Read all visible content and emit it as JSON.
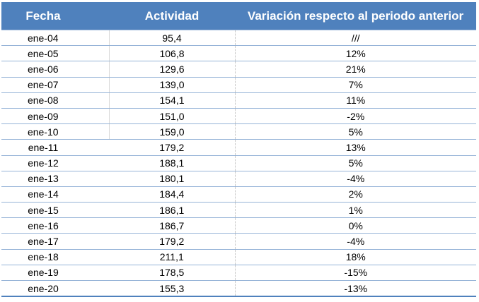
{
  "table": {
    "headers": {
      "fecha": "Fecha",
      "actividad": "Actividad",
      "variacion": "Variación respecto al periodo anterior"
    },
    "rows": [
      {
        "fecha": "ene-04",
        "actividad": "95,4",
        "variacion": "///"
      },
      {
        "fecha": "ene-05",
        "actividad": "106,8",
        "variacion": "12%"
      },
      {
        "fecha": "ene-06",
        "actividad": "129,6",
        "variacion": "21%"
      },
      {
        "fecha": "ene-07",
        "actividad": "139,0",
        "variacion": "7%"
      },
      {
        "fecha": "ene-08",
        "actividad": "154,1",
        "variacion": "11%"
      },
      {
        "fecha": "ene-09",
        "actividad": "151,0",
        "variacion": "-2%"
      },
      {
        "fecha": "ene-10",
        "actividad": "159,0",
        "variacion": "5%"
      },
      {
        "fecha": "ene-11",
        "actividad": "179,2",
        "variacion": "13%"
      },
      {
        "fecha": "ene-12",
        "actividad": "188,1",
        "variacion": "5%"
      },
      {
        "fecha": "ene-13",
        "actividad": "180,1",
        "variacion": "-4%"
      },
      {
        "fecha": "ene-14",
        "actividad": "184,4",
        "variacion": "2%"
      },
      {
        "fecha": "ene-15",
        "actividad": "186,1",
        "variacion": "1%"
      },
      {
        "fecha": "ene-16",
        "actividad": "186,7",
        "variacion": "0%"
      },
      {
        "fecha": "ene-17",
        "actividad": "179,2",
        "variacion": "-4%"
      },
      {
        "fecha": "ene-18",
        "actividad": "211,1",
        "variacion": "18%"
      },
      {
        "fecha": "ene-19",
        "actividad": "178,5",
        "variacion": "-15%"
      },
      {
        "fecha": "ene-20",
        "actividad": "155,3",
        "variacion": "-13%"
      }
    ]
  },
  "colors": {
    "header_background": "#4f81bd",
    "header_text": "#ffffff",
    "row_border": "#95b3d7"
  }
}
